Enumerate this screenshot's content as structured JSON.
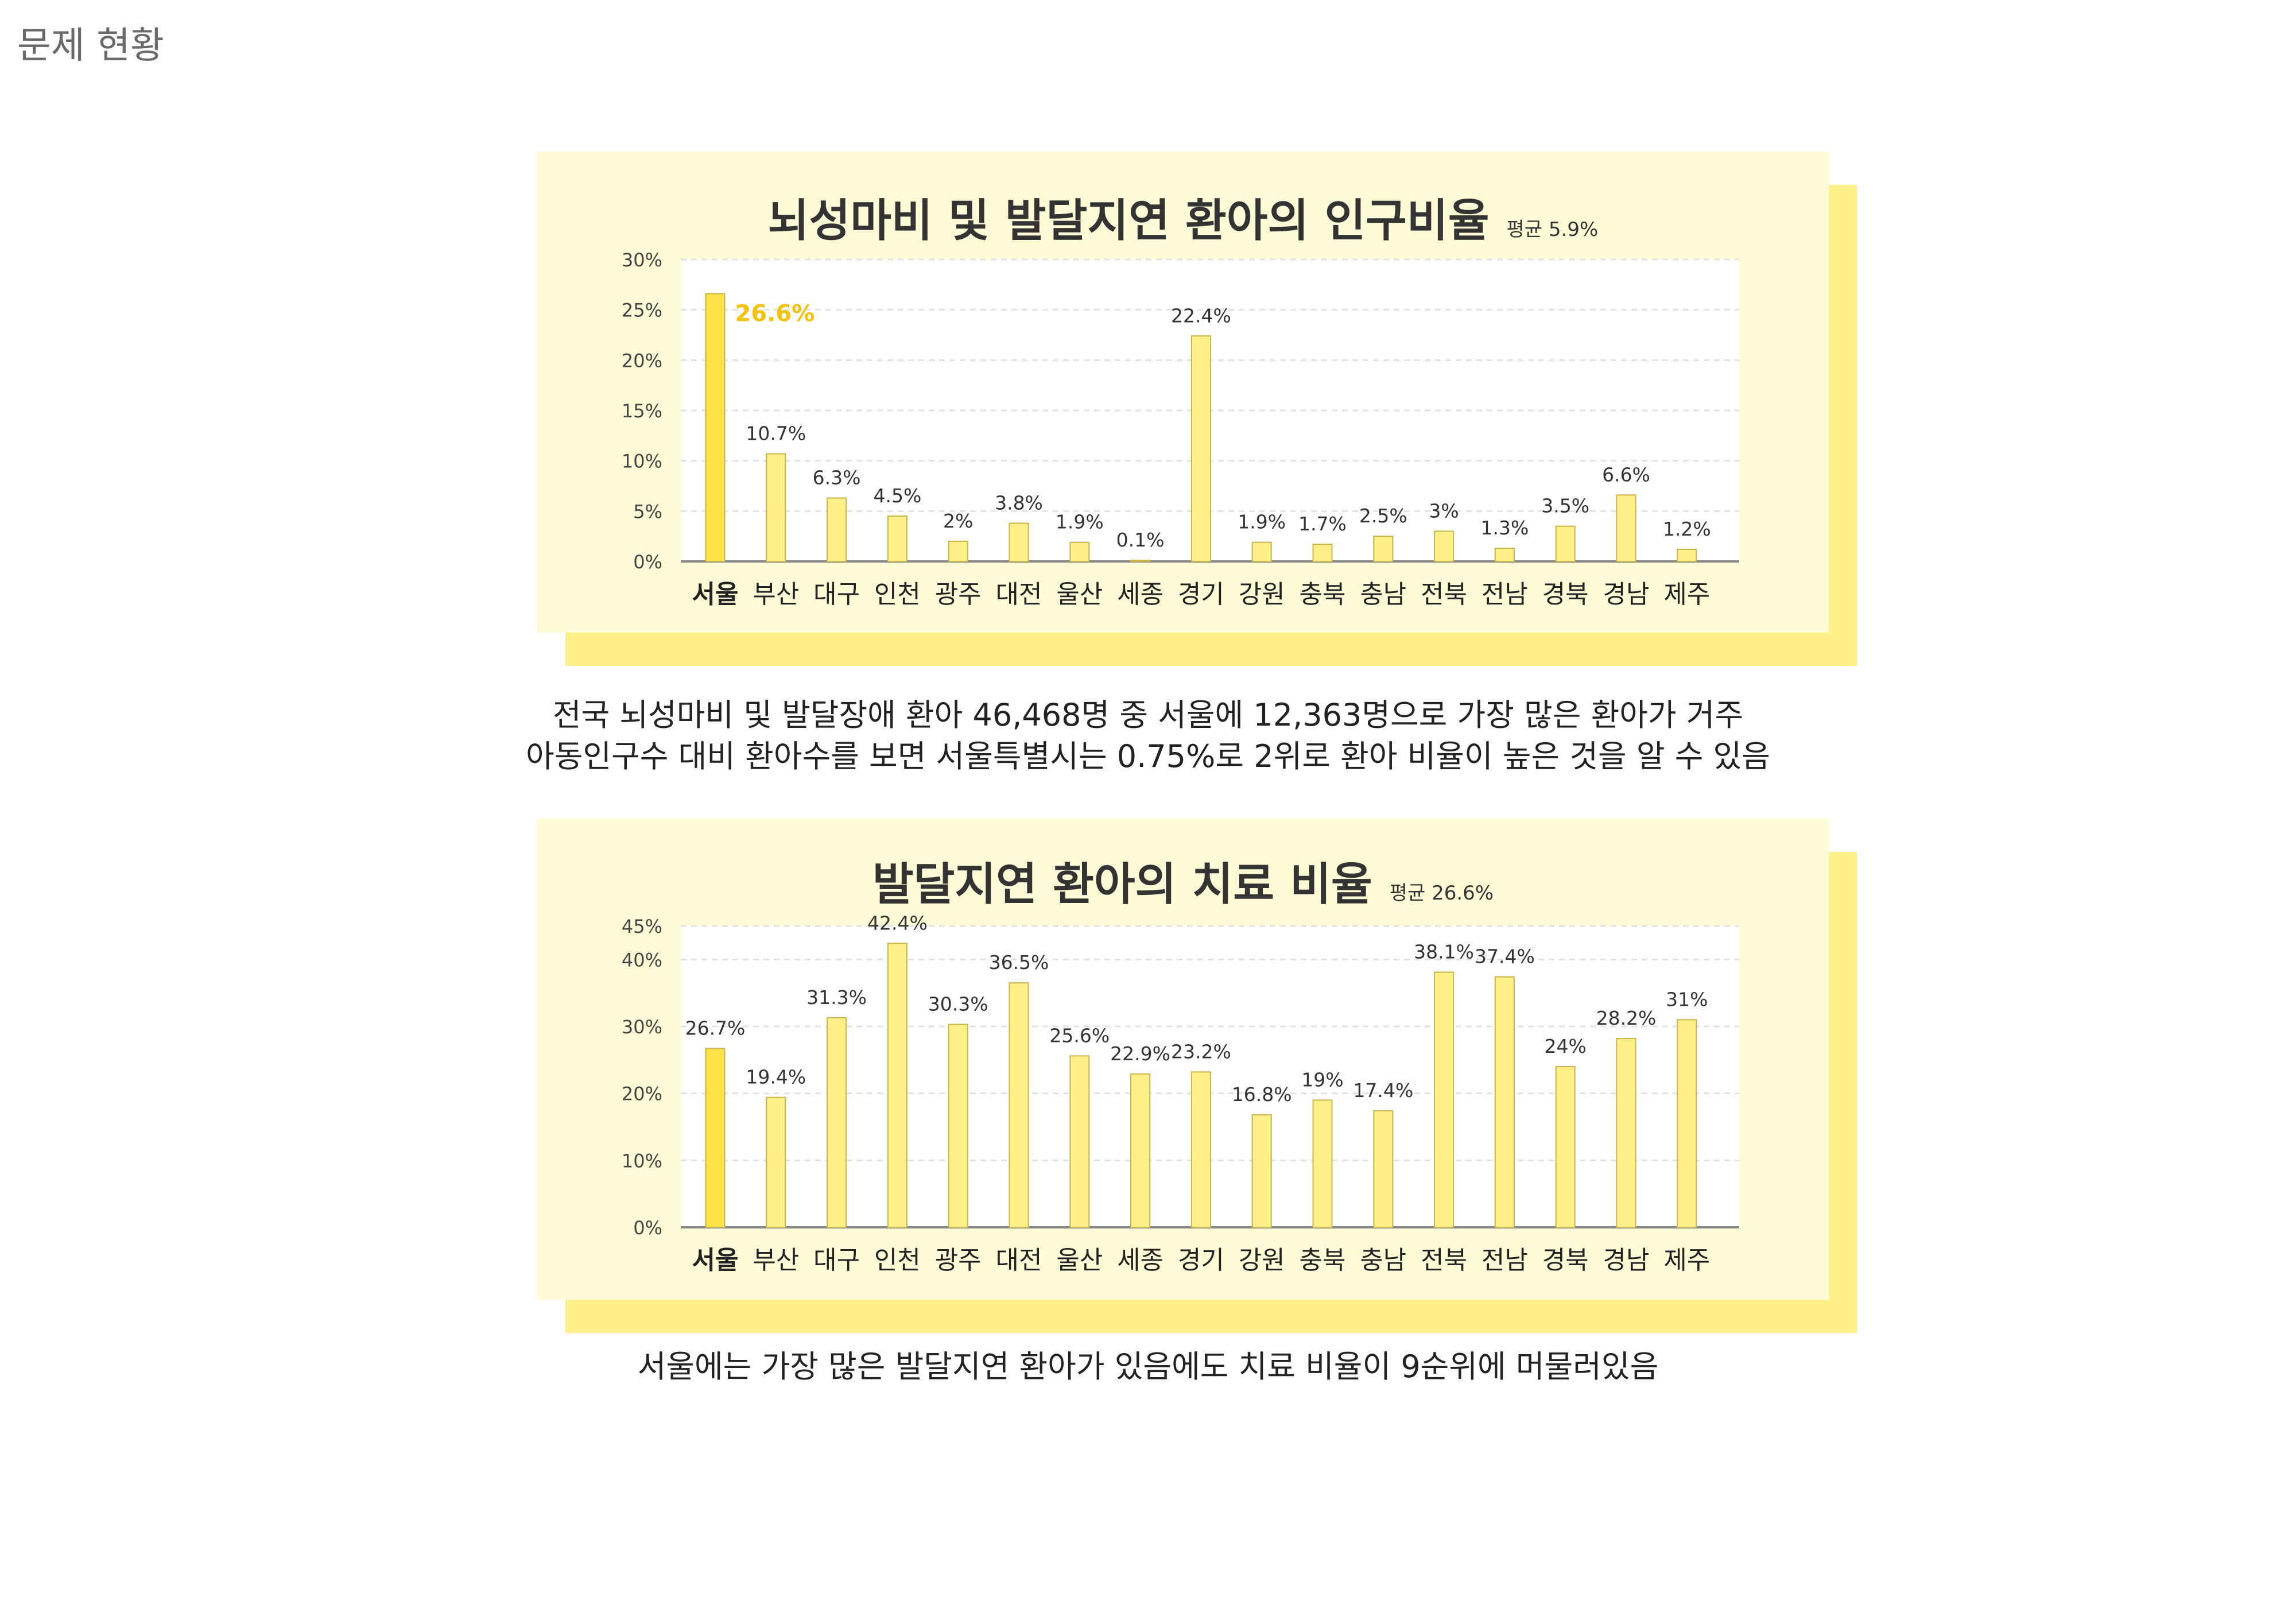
{
  "page": {
    "title": "문제 현황"
  },
  "colors": {
    "panel_bg": "#fffbd6",
    "panel_shadow": "#fef08a",
    "plot_bg": "#ffffff",
    "bar": "#fff08a",
    "bar_highlight": "#ffe14a",
    "bar_stroke": "#c9b44a",
    "highlight_label": "#f4c20d"
  },
  "chart1": {
    "title": "뇌성마비 및 발달지연 환아의 인구비율",
    "average_label": "평균 5.9%"
  },
  "caption1": {
    "line1": "전국 뇌성마비 및 발달장애 환아 46,468명 중 서울에 12,363명으로 가장 많은 환아가 거주",
    "line2": "아동인구수 대비 환아수를 보면 서울특별시는 0.75%로 2위로 환아 비율이 높은 것을 알 수 있음"
  },
  "chart2": {
    "title": "발달지연 환아의 치료 비율",
    "average_label": "평균 26.6%"
  },
  "caption2": {
    "line1": "서울에는 가장 많은 발달지연 환아가 있음에도 치료 비율이 9순위에 머물러있음"
  },
  "chart_data": [
    {
      "type": "bar",
      "title": "뇌성마비 및 발달지연 환아의 인구비율",
      "subtitle": "평균 5.9%",
      "categories": [
        "서울",
        "부산",
        "대구",
        "인천",
        "광주",
        "대전",
        "울산",
        "세종",
        "경기",
        "강원",
        "충북",
        "충남",
        "전북",
        "전남",
        "경북",
        "경남",
        "제주"
      ],
      "values": [
        26.6,
        10.7,
        6.3,
        4.5,
        2,
        3.8,
        1.9,
        0.1,
        22.4,
        1.9,
        1.7,
        2.5,
        3,
        1.3,
        3.5,
        6.6,
        1.2
      ],
      "data_labels": [
        "26.6%",
        "10.7%",
        "6.3%",
        "4.5%",
        "2%",
        "3.8%",
        "1.9%",
        "0.1%",
        "22.4%",
        "1.9%",
        "1.7%",
        "2.5%",
        "3%",
        "1.3%",
        "3.5%",
        "6.6%",
        "1.2%"
      ],
      "yticks": [
        0,
        5,
        10,
        15,
        20,
        25,
        30
      ],
      "ytick_labels": [
        "0%",
        "5%",
        "10%",
        "15%",
        "20%",
        "25%",
        "30%"
      ],
      "ylim": [
        0,
        30
      ],
      "highlight_index": 0,
      "grid": true
    },
    {
      "type": "bar",
      "title": "발달지연 환아의 치료 비율",
      "subtitle": "평균 26.6%",
      "categories": [
        "서울",
        "부산",
        "대구",
        "인천",
        "광주",
        "대전",
        "울산",
        "세종",
        "경기",
        "강원",
        "충북",
        "충남",
        "전북",
        "전남",
        "경북",
        "경남",
        "제주"
      ],
      "values": [
        26.7,
        19.4,
        31.3,
        42.4,
        30.3,
        36.5,
        25.6,
        22.9,
        23.2,
        16.8,
        19,
        17.4,
        38.1,
        37.4,
        24,
        28.2,
        31
      ],
      "data_labels": [
        "26.7%",
        "19.4%",
        "31.3%",
        "42.4%",
        "30.3%",
        "36.5%",
        "25.6%",
        "22.9%",
        "23.2%",
        "16.8%",
        "19%",
        "17.4%",
        "38.1%",
        "37.4%",
        "24%",
        "28.2%",
        "31%"
      ],
      "yticks": [
        0,
        10,
        20,
        30,
        40,
        45
      ],
      "ytick_labels": [
        "0%",
        "10%",
        "20%",
        "30%",
        "40%",
        "45%"
      ],
      "ylim": [
        0,
        45
      ],
      "highlight_index": 0,
      "grid": true
    }
  ]
}
